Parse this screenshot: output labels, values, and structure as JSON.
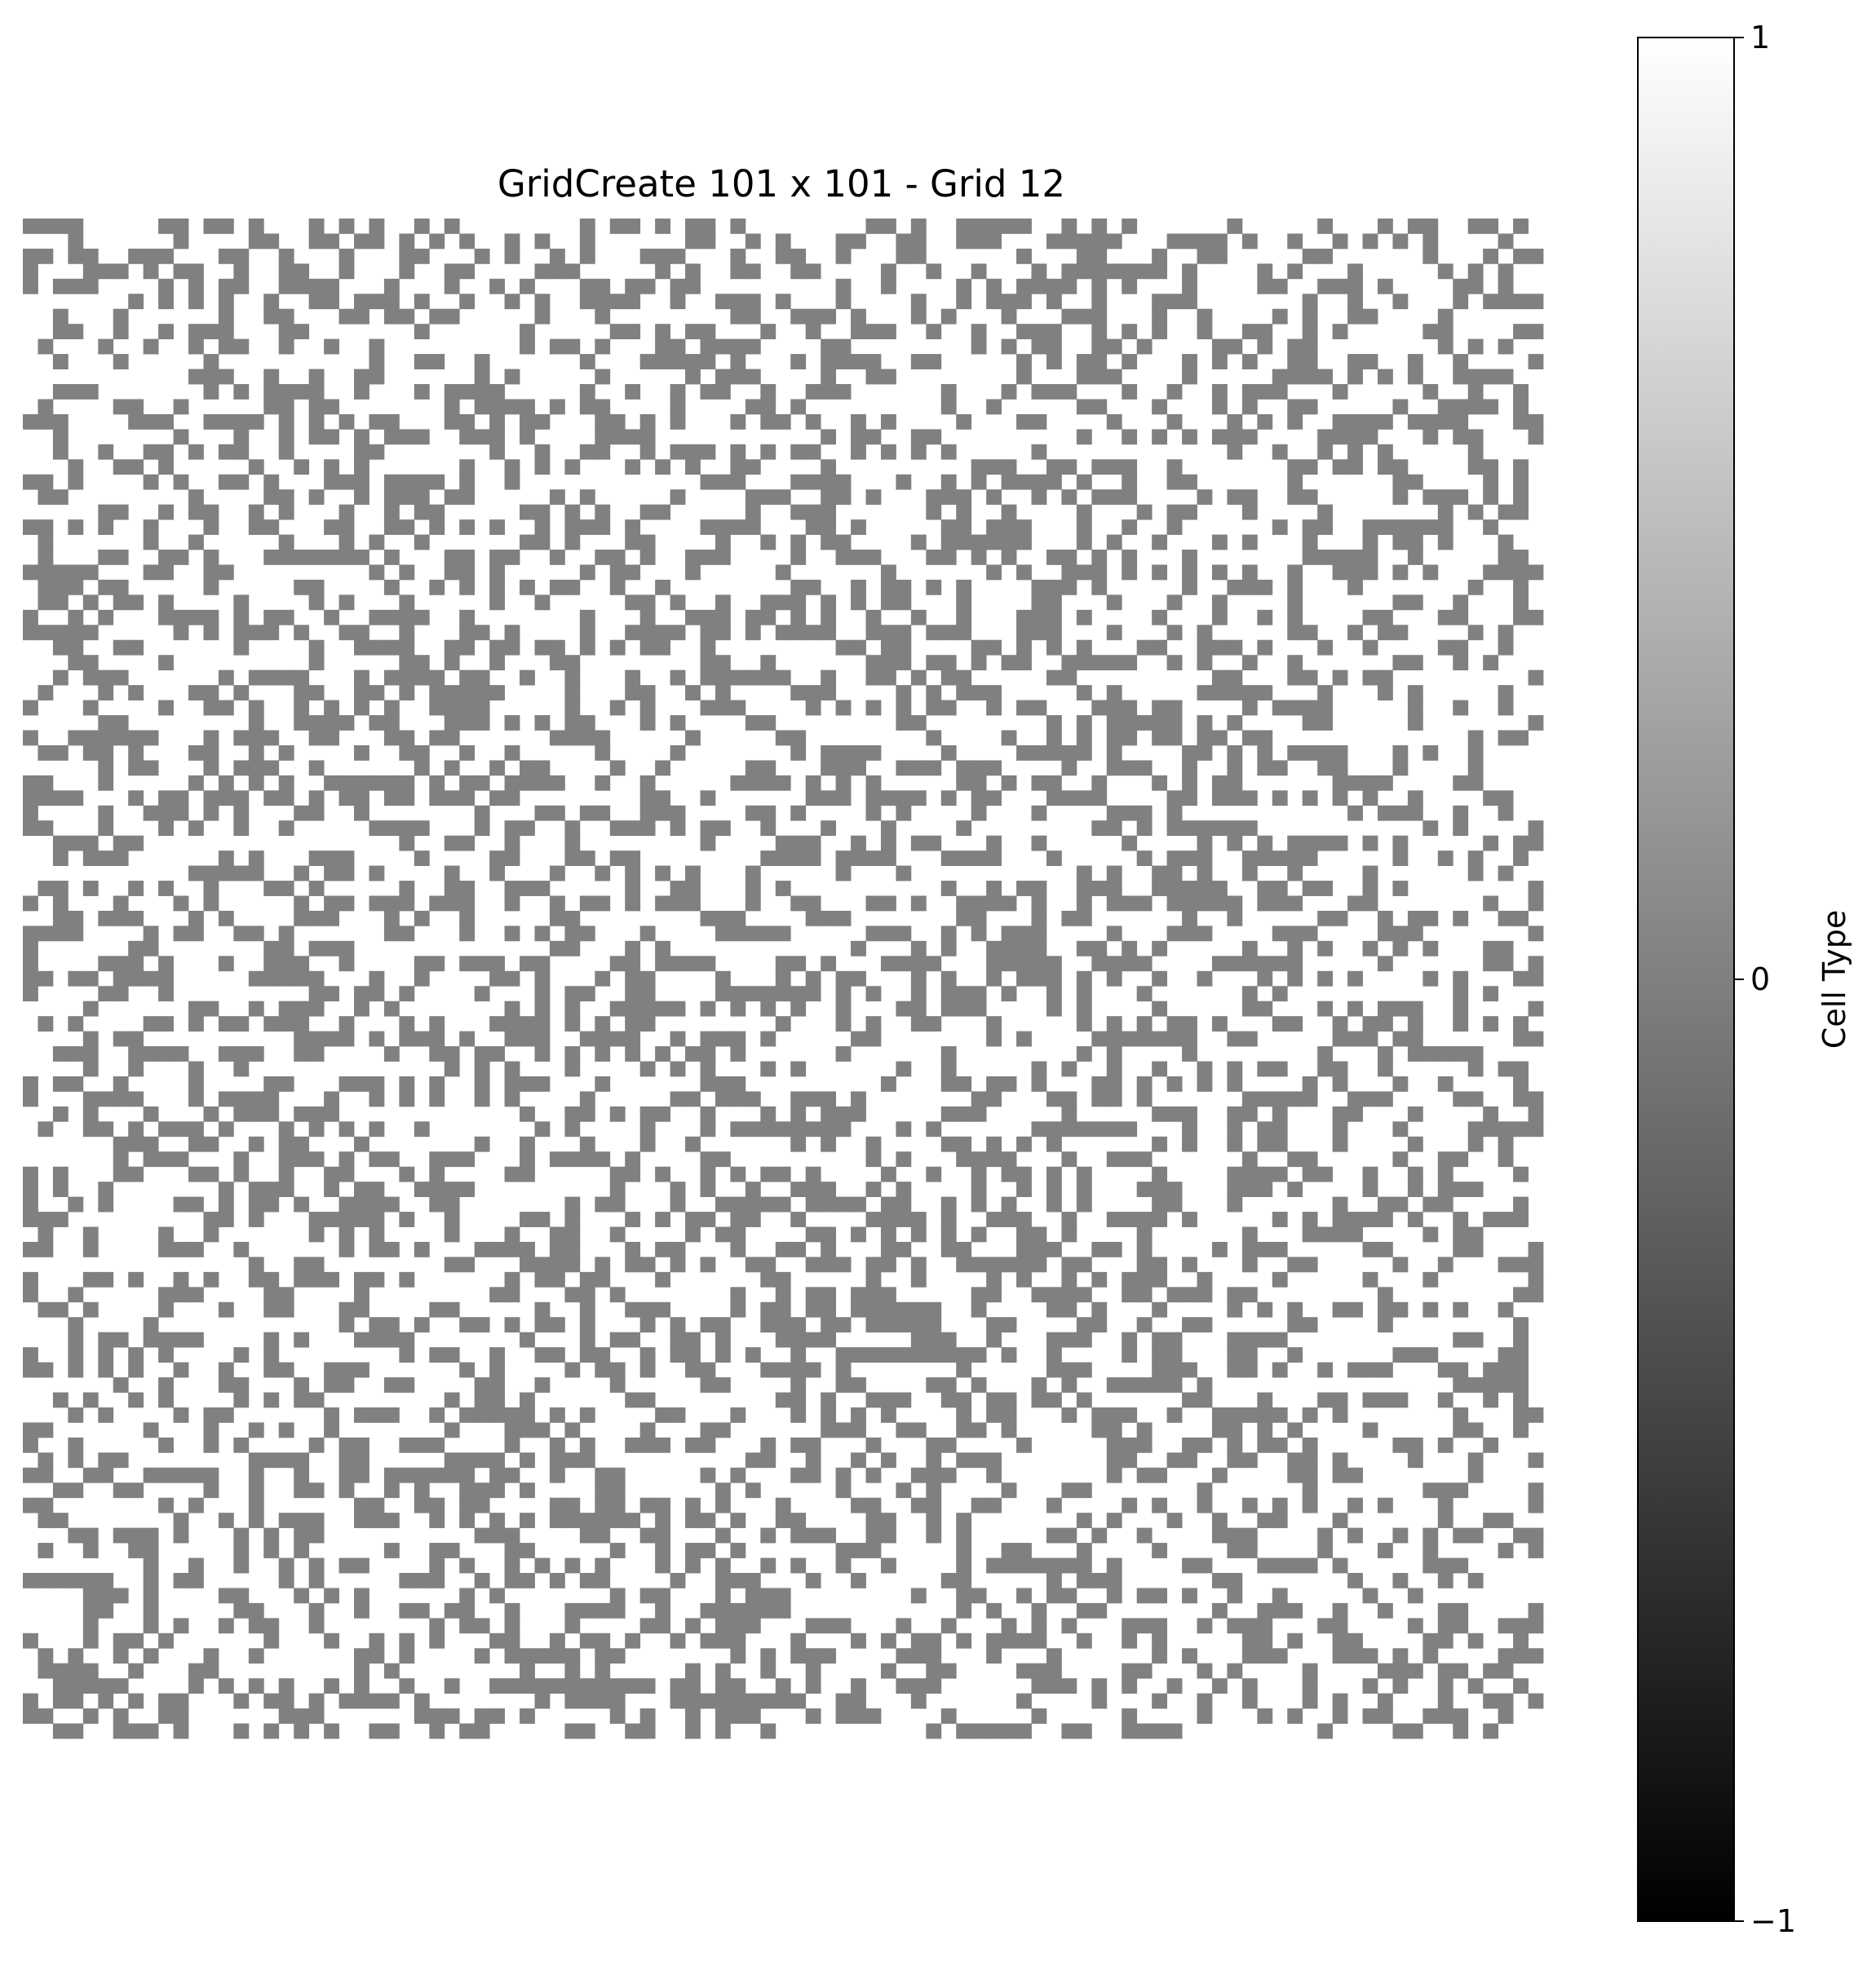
{
  "chart_data": {
    "type": "heatmap",
    "title": "GridCreate 101 x 101 - Grid 12",
    "grid": {
      "rows": 101,
      "cols": 101,
      "value_set": [
        0,
        1
      ],
      "note_on_cells": "binary cell map: 0 = grey cell, 1 = white cell; individual cell values approximated as a noisy pattern (about 38% grey)",
      "grey_fraction": 0.38,
      "colors": {
        "0": "#808080",
        "1": "#ffffff"
      }
    },
    "colorbar": {
      "label": "Cell Type",
      "range": [
        -1,
        1
      ],
      "ticks": [
        {
          "value": 1,
          "label": "1"
        },
        {
          "value": 0,
          "label": "0"
        },
        {
          "value": -1,
          "label": "−1"
        }
      ],
      "colormap": "gray",
      "color_low": "#000000",
      "color_high": "#ffffff"
    },
    "axes_visible": false,
    "grid_lines": false
  }
}
